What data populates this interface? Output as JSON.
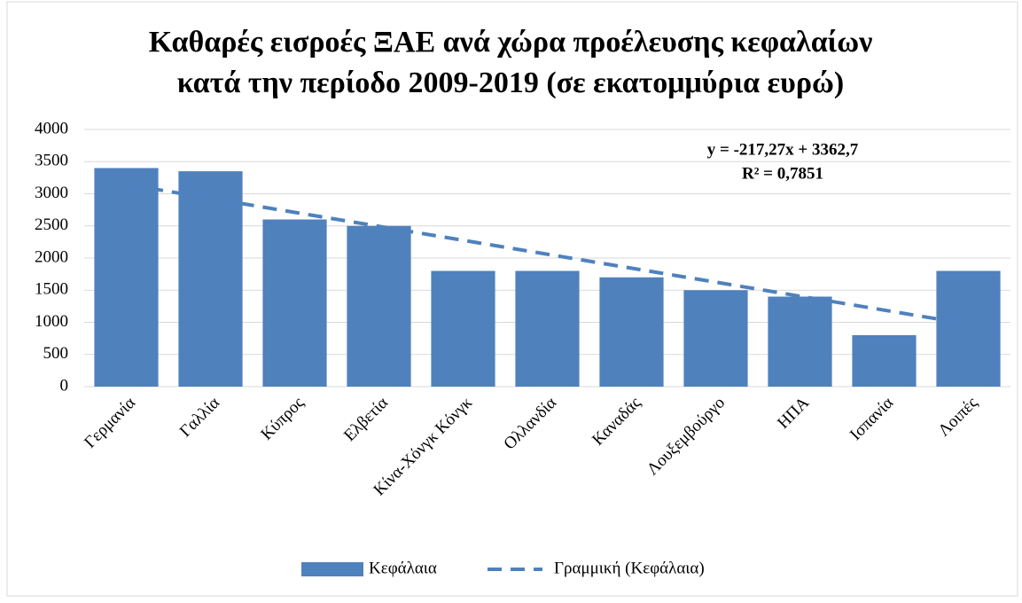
{
  "chart_data": {
    "type": "bar",
    "title": [
      "Καθαρές εισροές ΞΑΕ ανά χώρα προέλευσης κεφαλαίων",
      "κατά την περίοδο 2009-2019 (σε εκατομμύρια ευρώ)"
    ],
    "categories": [
      "Γερμανία",
      "Γαλλία",
      "Κύπρος",
      "Ελβετία",
      "Κίνα-Χόνγκ Κόνγκ",
      "Ολλανδία",
      "Καναδάς",
      "Λουξεμβούργο",
      "ΗΠΑ",
      "Ισπανία",
      "Λοιπές"
    ],
    "series": [
      {
        "name": "Κεφάλαια",
        "color": "#4f81bd",
        "values": [
          3400,
          3350,
          2600,
          2500,
          1800,
          1800,
          1700,
          1500,
          1400,
          800,
          1800
        ]
      }
    ],
    "trendline": {
      "name": "Γραμμική (Κεφάλαια)",
      "color": "#4f81bd",
      "slope": -217.27,
      "intercept": 3362.7,
      "equation": "y = -217,27x + 3362,7",
      "r2": "R² = 0,7851"
    },
    "ylim": [
      0,
      4000
    ],
    "yticks": [
      0,
      500,
      1000,
      1500,
      2000,
      2500,
      3000,
      3500,
      4000
    ],
    "grid": true,
    "legend": "bottom"
  }
}
